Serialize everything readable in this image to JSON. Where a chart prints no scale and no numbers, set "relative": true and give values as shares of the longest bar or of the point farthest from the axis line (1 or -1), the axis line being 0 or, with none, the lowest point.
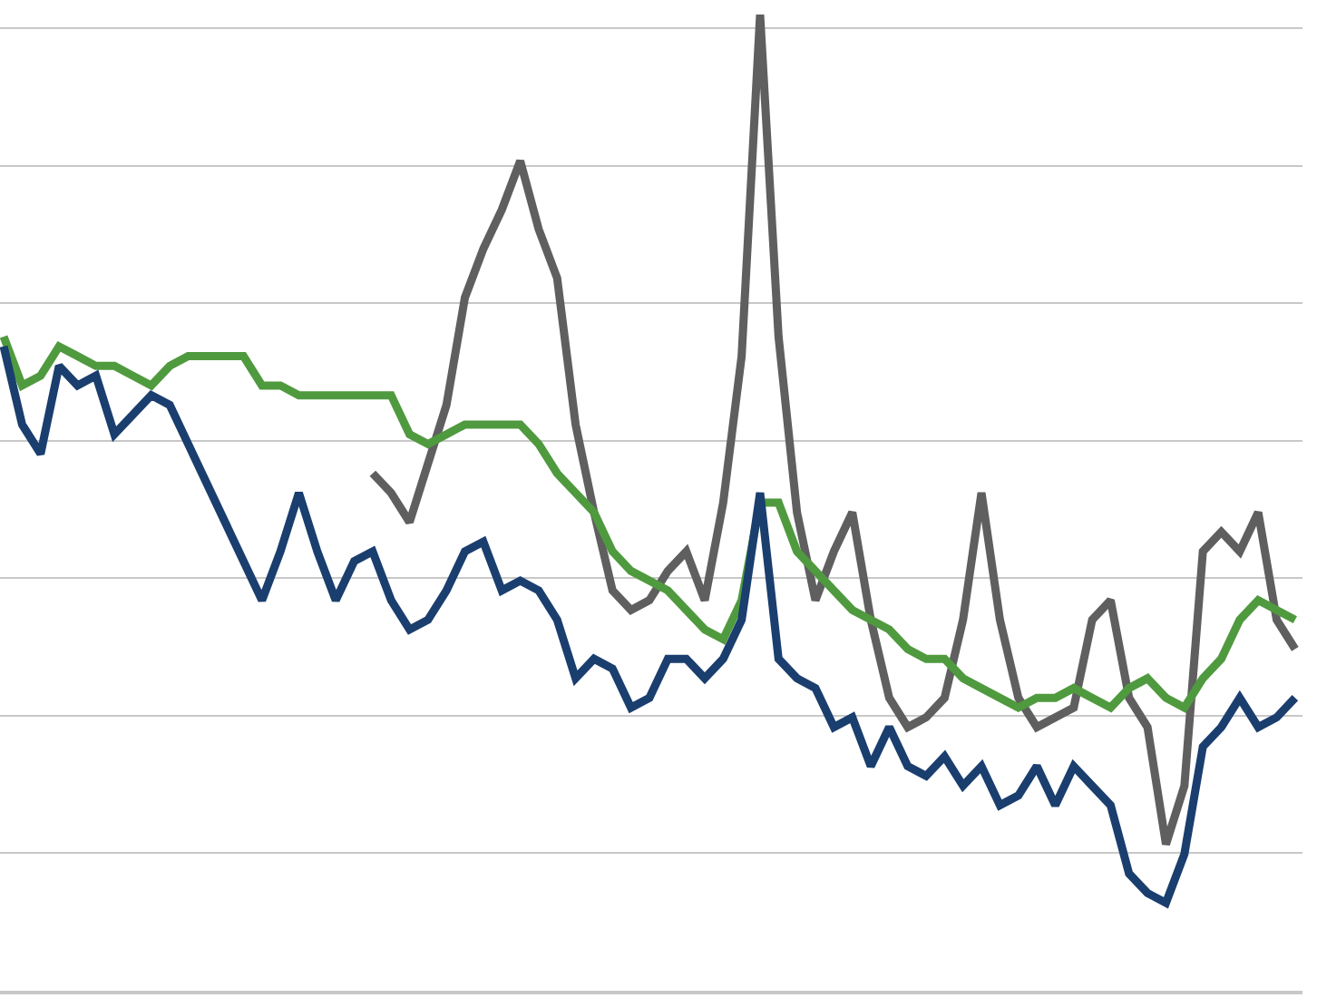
{
  "chart_data": {
    "type": "line",
    "relative": true,
    "grid": "y",
    "line_style": "solid",
    "marker": "none",
    "categories": [
      null,
      null,
      null,
      null,
      null,
      null,
      null,
      null,
      null,
      null,
      null,
      null,
      null,
      null,
      null,
      null,
      null,
      null,
      null,
      null,
      null,
      null,
      null,
      null,
      null,
      null,
      null,
      null,
      null,
      null,
      null,
      null,
      null,
      null,
      null,
      null,
      null,
      null,
      null,
      null,
      null,
      null,
      null,
      null,
      null,
      null,
      null,
      null,
      null,
      null,
      null,
      null,
      null,
      null,
      null,
      null,
      null,
      null,
      null,
      null,
      null,
      null,
      null,
      null,
      null,
      null,
      null,
      null,
      null,
      null,
      null
    ],
    "series": [
      {
        "color": "#5f5f5f",
        "values": [
          null,
          null,
          null,
          null,
          null,
          null,
          null,
          null,
          null,
          null,
          null,
          null,
          null,
          null,
          null,
          null,
          null,
          null,
          null,
          null,
          0.53,
          0.51,
          0.48,
          0.54,
          0.6,
          0.71,
          0.76,
          0.8,
          0.85,
          0.78,
          0.73,
          0.58,
          0.49,
          0.41,
          0.39,
          0.4,
          0.43,
          0.45,
          0.4,
          0.5,
          0.65,
          1.0,
          0.67,
          0.49,
          0.4,
          0.45,
          0.49,
          0.38,
          0.3,
          0.27,
          0.28,
          0.3,
          0.38,
          0.51,
          0.38,
          0.3,
          0.27,
          0.28,
          0.29,
          0.38,
          0.4,
          0.3,
          0.27,
          0.15,
          0.21,
          0.45,
          0.47,
          0.45,
          0.49,
          0.38,
          0.35
        ]
      },
      {
        "color": "#4f9a3e",
        "values": [
          0.67,
          0.62,
          0.63,
          0.66,
          0.65,
          0.64,
          0.64,
          0.63,
          0.62,
          0.64,
          0.65,
          0.65,
          0.65,
          0.65,
          0.62,
          0.62,
          0.61,
          0.61,
          0.61,
          0.61,
          0.61,
          0.61,
          0.57,
          0.56,
          0.57,
          0.58,
          0.58,
          0.58,
          0.58,
          0.56,
          0.53,
          0.51,
          0.49,
          0.45,
          0.43,
          0.42,
          0.41,
          0.39,
          0.37,
          0.36,
          0.4,
          0.5,
          0.5,
          0.45,
          0.43,
          0.41,
          0.39,
          0.38,
          0.37,
          0.35,
          0.34,
          0.34,
          0.32,
          0.31,
          0.3,
          0.29,
          0.3,
          0.3,
          0.31,
          0.3,
          0.29,
          0.31,
          0.32,
          0.3,
          0.29,
          0.32,
          0.34,
          0.38,
          0.4,
          0.39,
          0.38
        ]
      },
      {
        "color": "#1a3e6e",
        "values": [
          0.66,
          0.58,
          0.55,
          0.64,
          0.62,
          0.63,
          0.57,
          0.59,
          0.61,
          0.6,
          0.56,
          0.52,
          0.48,
          0.44,
          0.4,
          0.45,
          0.51,
          0.45,
          0.4,
          0.44,
          0.45,
          0.4,
          0.37,
          0.38,
          0.41,
          0.45,
          0.46,
          0.41,
          0.42,
          0.41,
          0.38,
          0.32,
          0.34,
          0.33,
          0.29,
          0.3,
          0.34,
          0.34,
          0.32,
          0.34,
          0.38,
          0.51,
          0.34,
          0.32,
          0.31,
          0.27,
          0.28,
          0.23,
          0.27,
          0.23,
          0.22,
          0.24,
          0.21,
          0.23,
          0.19,
          0.2,
          0.23,
          0.19,
          0.23,
          0.21,
          0.19,
          0.12,
          0.1,
          0.09,
          0.14,
          0.25,
          0.27,
          0.3,
          0.27,
          0.28,
          0.3
        ]
      }
    ]
  }
}
